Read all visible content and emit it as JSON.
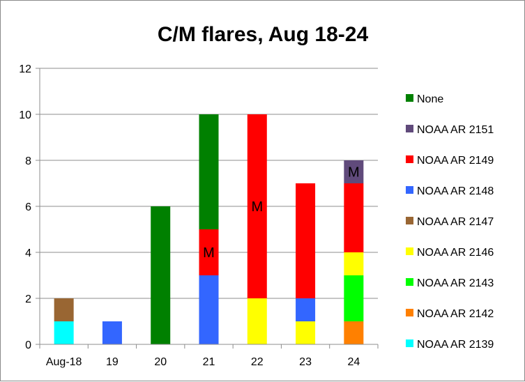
{
  "chart_data": {
    "type": "bar",
    "stacked": true,
    "title": "C/M flares, Aug 18-24",
    "xlabel": "",
    "ylabel": "",
    "ylim": [
      0,
      12
    ],
    "yticks": [
      0,
      2,
      4,
      6,
      8,
      10,
      12
    ],
    "grid": true,
    "legend_position": "right",
    "categories": [
      "Aug-18",
      "19",
      "20",
      "21",
      "22",
      "23",
      "24"
    ],
    "series": [
      {
        "name": "NOAA AR 2139",
        "color": "#00ffff",
        "values": [
          1,
          0,
          0,
          0,
          0,
          0,
          0
        ]
      },
      {
        "name": "NOAA AR 2142",
        "color": "#ff8000",
        "values": [
          0,
          0,
          0,
          0,
          0,
          0,
          1
        ]
      },
      {
        "name": "NOAA AR 2143",
        "color": "#00ff00",
        "values": [
          0,
          0,
          0,
          0,
          0,
          0,
          2
        ]
      },
      {
        "name": "NOAA AR 2146",
        "color": "#ffff00",
        "values": [
          0,
          0,
          0,
          0,
          2,
          1,
          1
        ]
      },
      {
        "name": "NOAA AR 2147",
        "color": "#996633",
        "values": [
          1,
          0,
          0,
          0,
          0,
          0,
          0
        ]
      },
      {
        "name": "NOAA AR 2148",
        "color": "#3366ff",
        "values": [
          0,
          1,
          0,
          3,
          0,
          1,
          0
        ]
      },
      {
        "name": "NOAA AR 2149",
        "color": "#ff0000",
        "values": [
          0,
          0,
          0,
          2,
          8,
          5,
          3
        ]
      },
      {
        "name": "NOAA AR 2151",
        "color": "#604a7b",
        "values": [
          0,
          0,
          0,
          0,
          0,
          0,
          1
        ]
      },
      {
        "name": "None",
        "color": "#008000",
        "values": [
          0,
          0,
          6,
          5,
          0,
          0,
          0
        ]
      }
    ],
    "legend_order": [
      "None",
      "NOAA AR 2151",
      "NOAA AR 2149",
      "NOAA AR 2148",
      "NOAA AR 2147",
      "NOAA AR 2146",
      "NOAA AR 2143",
      "NOAA AR 2142",
      "NOAA AR 2139"
    ],
    "annotations": [
      {
        "text": "M",
        "category": "21",
        "series": "NOAA AR 2149"
      },
      {
        "text": "M",
        "category": "22",
        "series": "NOAA AR 2149"
      },
      {
        "text": "M",
        "category": "24",
        "series": "NOAA AR 2151"
      }
    ]
  }
}
